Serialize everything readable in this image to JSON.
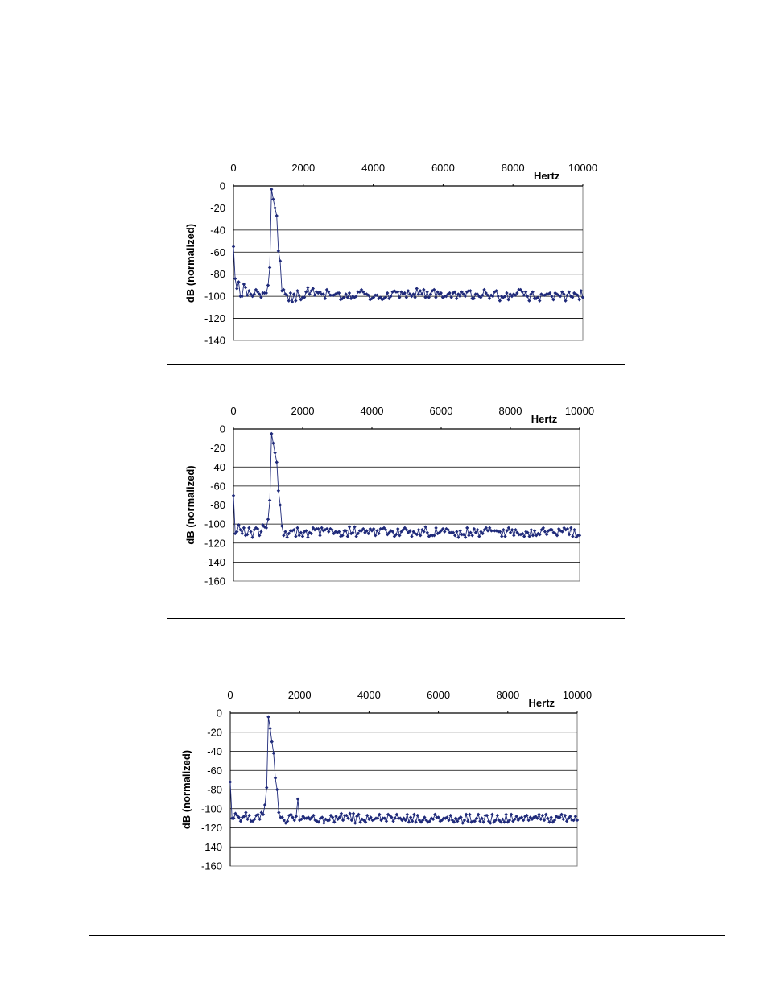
{
  "colors": {
    "series": "#1f2a7a",
    "grid": "#000000",
    "axis": "#808080"
  },
  "chart_data": [
    {
      "type": "line",
      "markers": "diamond",
      "xlabel": "Hertz",
      "ylabel": "dB (normalized)",
      "xlim": [
        0,
        10000
      ],
      "ylim": [
        -140,
        0
      ],
      "xticks": [
        "0",
        "2000",
        "4000",
        "6000",
        "8000",
        "10000"
      ],
      "yticks": [
        "0",
        "-20",
        "-40",
        "-60",
        "-80",
        "-100",
        "-120",
        "-140"
      ],
      "grid": true,
      "x_axis_position": "top",
      "series": [
        {
          "peak_hz": 1000,
          "values": [
            -55,
            -84,
            -93,
            -87,
            -100,
            -100,
            -89,
            -92,
            -99,
            -95,
            -98,
            -100,
            -98,
            -94,
            -96,
            -98,
            -101,
            -97,
            -97,
            -97,
            -90,
            -74,
            -3,
            -12,
            -20,
            -27,
            -59,
            -68,
            -95,
            -94,
            -98,
            -99,
            -104,
            -97,
            -105,
            -98,
            -104,
            -95,
            -99,
            -103,
            -101,
            -101,
            -96,
            -92,
            -98,
            -95,
            -93,
            -99,
            -96,
            -97,
            -96,
            -98,
            -98,
            -102,
            -94,
            -96,
            -99,
            -99,
            -99,
            -98,
            -97,
            -97,
            -103,
            -102,
            -101,
            -98,
            -101,
            -97,
            -102,
            -100,
            -101,
            -100,
            -96,
            -96,
            -94,
            -96,
            -98,
            -98,
            -99,
            -103,
            -102,
            -101,
            -99,
            -99,
            -102,
            -101,
            -103,
            -102,
            -101,
            -97,
            -102,
            -100,
            -96,
            -95,
            -96,
            -96,
            -101,
            -96,
            -98,
            -97,
            -101,
            -95,
            -98,
            -100,
            -98,
            -101,
            -93,
            -98,
            -95,
            -98,
            -94,
            -101,
            -96,
            -101,
            -98,
            -95,
            -94,
            -101,
            -96,
            -98,
            -97,
            -101,
            -100,
            -100,
            -98,
            -97,
            -101,
            -97,
            -96,
            -102,
            -98,
            -100,
            -96,
            -98,
            -100,
            -96,
            -95,
            -95,
            -102,
            -102,
            -98,
            -98,
            -100,
            -101,
            -99,
            -94,
            -97,
            -99,
            -102,
            -99,
            -100,
            -96,
            -95,
            -100,
            -104,
            -100,
            -101,
            -100,
            -97,
            -103,
            -98,
            -100,
            -98,
            -99,
            -97,
            -94,
            -94,
            -96,
            -99,
            -96,
            -100,
            -104,
            -98,
            -96,
            -102,
            -102,
            -101,
            -104,
            -98,
            -99,
            -99,
            -98,
            -98,
            -97,
            -100,
            -103,
            -97,
            -98,
            -99,
            -100,
            -96,
            -98,
            -104,
            -99,
            -96,
            -100,
            -101,
            -97,
            -98,
            -99,
            -103,
            -95,
            -101
          ]
        }
      ]
    },
    {
      "type": "line",
      "markers": "diamond",
      "xlabel": "Hertz",
      "ylabel": "dB (normalized)",
      "xlim": [
        0,
        10000
      ],
      "ylim": [
        -160,
        0
      ],
      "xticks": [
        "0",
        "2000",
        "4000",
        "6000",
        "8000",
        "10000"
      ],
      "yticks": [
        "0",
        "-20",
        "-40",
        "-60",
        "-80",
        "-100",
        "-120",
        "-140",
        "-160"
      ],
      "grid": true,
      "x_axis_position": "top",
      "series": [
        {
          "peak_hz": 1000,
          "values": [
            -70,
            -110,
            -108,
            -101,
            -106,
            -110,
            -104,
            -112,
            -111,
            -104,
            -108,
            -114,
            -106,
            -104,
            -105,
            -112,
            -108,
            -101,
            -103,
            -104,
            -95,
            -75,
            -5,
            -15,
            -25,
            -35,
            -65,
            -80,
            -102,
            -112,
            -108,
            -114,
            -110,
            -107,
            -107,
            -106,
            -113,
            -104,
            -112,
            -109,
            -113,
            -108,
            -107,
            -114,
            -109,
            -110,
            -104,
            -106,
            -105,
            -105,
            -112,
            -104,
            -107,
            -106,
            -105,
            -108,
            -105,
            -106,
            -110,
            -108,
            -109,
            -108,
            -113,
            -112,
            -107,
            -107,
            -113,
            -103,
            -110,
            -109,
            -103,
            -113,
            -110,
            -107,
            -107,
            -105,
            -109,
            -107,
            -110,
            -105,
            -107,
            -105,
            -112,
            -107,
            -110,
            -105,
            -105,
            -104,
            -106,
            -111,
            -109,
            -107,
            -108,
            -113,
            -111,
            -105,
            -112,
            -108,
            -106,
            -104,
            -106,
            -109,
            -107,
            -113,
            -108,
            -110,
            -111,
            -106,
            -112,
            -106,
            -108,
            -103,
            -109,
            -113,
            -112,
            -112,
            -112,
            -104,
            -110,
            -109,
            -107,
            -105,
            -108,
            -105,
            -106,
            -109,
            -109,
            -109,
            -112,
            -108,
            -114,
            -107,
            -111,
            -111,
            -114,
            -104,
            -112,
            -109,
            -112,
            -105,
            -109,
            -106,
            -113,
            -108,
            -110,
            -106,
            -104,
            -107,
            -104,
            -107,
            -107,
            -107,
            -107,
            -108,
            -108,
            -113,
            -106,
            -113,
            -107,
            -104,
            -109,
            -106,
            -112,
            -106,
            -109,
            -111,
            -111,
            -110,
            -113,
            -108,
            -109,
            -113,
            -106,
            -112,
            -107,
            -112,
            -110,
            -111,
            -106,
            -104,
            -108,
            -111,
            -107,
            -106,
            -106,
            -109,
            -110,
            -112,
            -105,
            -107,
            -108,
            -104,
            -106,
            -105,
            -111,
            -104,
            -113,
            -106,
            -114,
            -112,
            -112
          ]
        }
      ]
    },
    {
      "type": "line",
      "markers": "diamond",
      "xlabel": "Hertz",
      "ylabel": "dB (normalized)",
      "xlim": [
        0,
        10000
      ],
      "ylim": [
        -160,
        0
      ],
      "xticks": [
        "0",
        "2000",
        "4000",
        "6000",
        "8000",
        "10000"
      ],
      "yticks": [
        "0",
        "-20",
        "-40",
        "-60",
        "-80",
        "-100",
        "-120",
        "-140",
        "-160"
      ],
      "grid": true,
      "x_axis_position": "top",
      "series": [
        {
          "peak_hz": 1000,
          "values": [
            -72,
            -110,
            -110,
            -105,
            -107,
            -109,
            -113,
            -109,
            -108,
            -104,
            -111,
            -107,
            -113,
            -113,
            -111,
            -107,
            -106,
            -111,
            -104,
            -106,
            -96,
            -78,
            -4,
            -16,
            -30,
            -42,
            -68,
            -80,
            -104,
            -109,
            -109,
            -112,
            -115,
            -113,
            -107,
            -106,
            -109,
            -112,
            -108,
            -90,
            -112,
            -111,
            -108,
            -110,
            -110,
            -109,
            -111,
            -109,
            -107,
            -112,
            -113,
            -114,
            -110,
            -109,
            -115,
            -111,
            -112,
            -112,
            -107,
            -109,
            -114,
            -108,
            -111,
            -109,
            -105,
            -112,
            -107,
            -107,
            -110,
            -105,
            -112,
            -105,
            -115,
            -108,
            -106,
            -114,
            -111,
            -112,
            -114,
            -107,
            -111,
            -109,
            -112,
            -111,
            -110,
            -110,
            -106,
            -112,
            -110,
            -110,
            -113,
            -106,
            -107,
            -109,
            -113,
            -110,
            -106,
            -110,
            -110,
            -112,
            -110,
            -112,
            -106,
            -114,
            -109,
            -113,
            -106,
            -114,
            -107,
            -112,
            -114,
            -112,
            -109,
            -112,
            -114,
            -113,
            -110,
            -111,
            -106,
            -109,
            -109,
            -113,
            -112,
            -110,
            -110,
            -109,
            -112,
            -107,
            -112,
            -114,
            -110,
            -113,
            -110,
            -109,
            -115,
            -112,
            -106,
            -113,
            -106,
            -114,
            -113,
            -113,
            -110,
            -106,
            -113,
            -110,
            -114,
            -107,
            -107,
            -113,
            -115,
            -106,
            -114,
            -112,
            -107,
            -112,
            -114,
            -111,
            -114,
            -106,
            -114,
            -112,
            -106,
            -113,
            -111,
            -108,
            -112,
            -110,
            -109,
            -112,
            -108,
            -107,
            -112,
            -109,
            -111,
            -109,
            -108,
            -110,
            -106,
            -111,
            -107,
            -112,
            -106,
            -110,
            -114,
            -109,
            -114,
            -112,
            -108,
            -109,
            -109,
            -106,
            -111,
            -107,
            -113,
            -110,
            -108,
            -112,
            -112,
            -108,
            -112
          ]
        }
      ]
    }
  ]
}
